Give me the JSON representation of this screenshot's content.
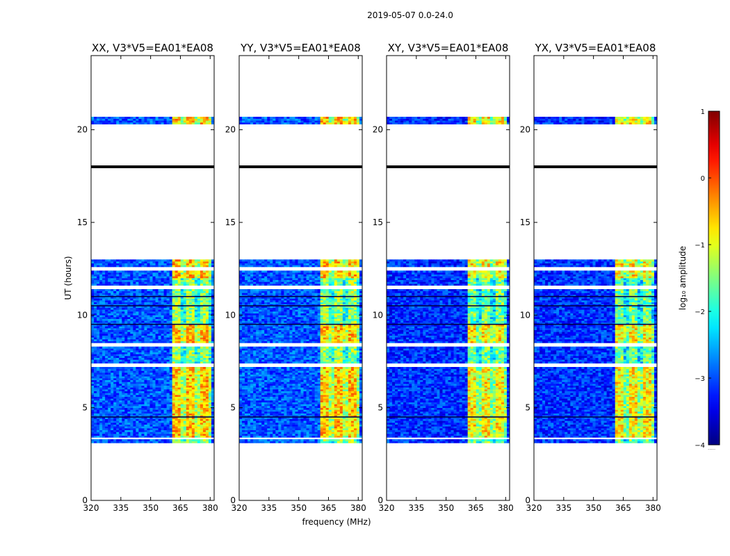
{
  "chart_data": {
    "type": "heatmap",
    "suptitle": "2019-05-07 0.0-24.0",
    "xlabel": "frequency (MHz)",
    "ylabel": "UT (hours)",
    "xlim": [
      320,
      382
    ],
    "ylim": [
      0,
      24
    ],
    "xticks": [
      320,
      335,
      350,
      365,
      380
    ],
    "yticks": [
      0,
      5,
      10,
      15,
      20
    ],
    "panels": [
      {
        "title": "XX, V3*V5=EA01*EA08",
        "correlation": "XX"
      },
      {
        "title": "YY, V3*V5=EA01*EA08",
        "correlation": "YY"
      },
      {
        "title": "XY, V3*V5=EA01*EA08",
        "correlation": "XY"
      },
      {
        "title": "YX, V3*V5=EA01*EA08",
        "correlation": "YX"
      }
    ],
    "colorbar": {
      "label": "log₁₀ amplitude",
      "range": [
        -4,
        1
      ],
      "ticks": [
        -4,
        -3,
        -2,
        -1,
        0,
        1
      ],
      "colormap": "jet"
    },
    "data_blocks_ut_hours": [
      [
        3.1,
        13.0
      ],
      [
        20.3,
        20.75
      ]
    ],
    "blank_ut_hours": [
      [
        11.4,
        11.6
      ],
      [
        12.4,
        12.6
      ],
      [
        8.3,
        8.45
      ],
      [
        7.2,
        7.35
      ],
      [
        3.35,
        3.45
      ]
    ],
    "flagged_row_ut_hours": 18.0,
    "bright_band_mhz": [
      360.5,
      380
    ],
    "right_edge_label": "....."
  }
}
